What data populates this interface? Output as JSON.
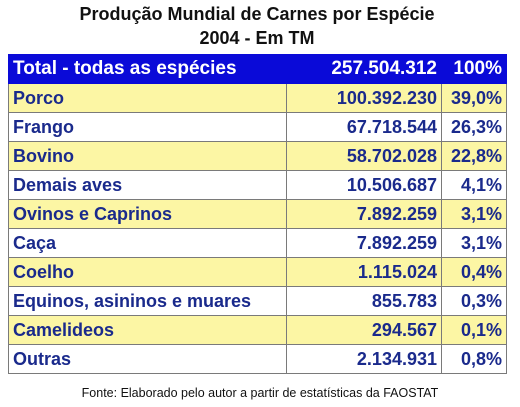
{
  "chart_data": {
    "type": "table",
    "title": "Produção Mundial de Carnes por Espécie",
    "subtitle": "2004 - Em TM",
    "total": {
      "label": "Total - todas as espécies",
      "value": "257.504.312",
      "percent": "100%"
    },
    "rows": [
      {
        "label": "Porco",
        "value": "100.392.230",
        "percent": "39,0%"
      },
      {
        "label": "Frango",
        "value": "67.718.544",
        "percent": "26,3%"
      },
      {
        "label": "Bovino",
        "value": "58.702.028",
        "percent": "22,8%"
      },
      {
        "label": "Demais aves",
        "value": "10.506.687",
        "percent": "4,1%"
      },
      {
        "label": "Ovinos e Caprinos",
        "value": "7.892.259",
        "percent": "3,1%"
      },
      {
        "label": "Caça",
        "value": "7.892.259",
        "percent": "3,1%"
      },
      {
        "label": "Coelho",
        "value": "1.115.024",
        "percent": "0,4%"
      },
      {
        "label": "Equinos, asininos e muares",
        "value": "855.783",
        "percent": "0,3%"
      },
      {
        "label": "Camelideos",
        "value": "294.567",
        "percent": "0,1%"
      },
      {
        "label": "Outras",
        "value": "2.134.931",
        "percent": "0,8%"
      }
    ],
    "footnote": "Fonte: Elaborado pelo autor a partir de estatísticas da FAOSTAT"
  },
  "colors": {
    "header_bg": "#0a0ad8",
    "odd_row_bg": "#fcf6a4",
    "even_row_bg": "#ffffff",
    "text": "#1a2a8c"
  }
}
